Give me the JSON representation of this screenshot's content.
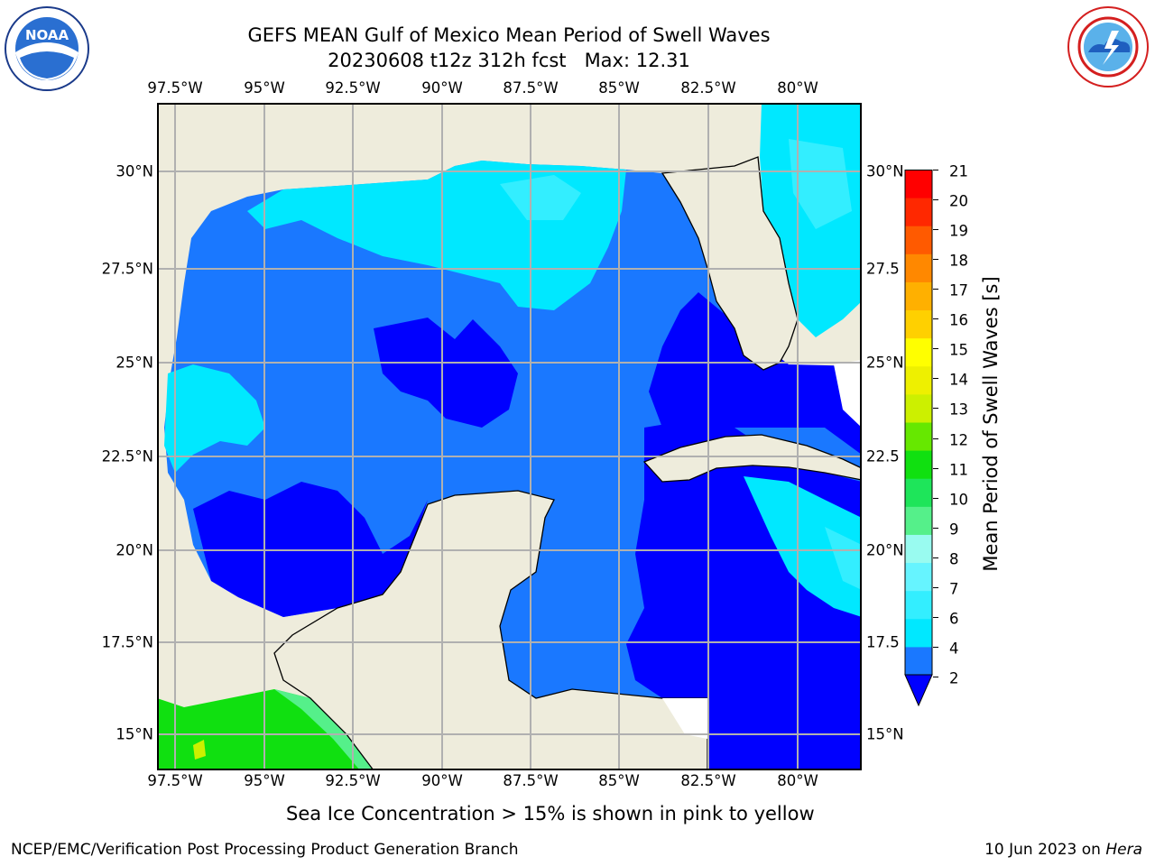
{
  "title": {
    "line1": "GEFS MEAN Gulf of Mexico Mean Period of Swell Waves",
    "line2": "20230608 t12z 312h fcst   Max: 12.31"
  },
  "logos": {
    "left": {
      "icon": "noaa-logo",
      "text": "NOAA",
      "ring_text": "NATIONAL OCEANIC AND ATMOSPHERIC ADMINISTRATION · U.S. DEPARTMENT OF COMMERCE"
    },
    "right": {
      "icon": "national-weather-service-logo",
      "ring_text": "NATIONAL WEATHER SERVICE"
    }
  },
  "map": {
    "region": "Gulf of Mexico",
    "lon_ticks": [
      "97.5°W",
      "95°W",
      "92.5°W",
      "90°W",
      "87.5°W",
      "85°W",
      "82.5°W",
      "80°W"
    ],
    "lat_ticks_left": [
      "30°N",
      "27.5°N",
      "25°N",
      "22.5°N",
      "20°N",
      "17.5°N",
      "15°N"
    ],
    "lat_ticks_right": [
      "30°N",
      "27.5",
      "25°N",
      "22.5",
      "20°N",
      "17.5",
      "15°N"
    ],
    "colors": {
      "land": "#eeecdc",
      "coast": "#000000",
      "grid": "#b0b0b0",
      "missing": "#ffffff"
    }
  },
  "colorbar": {
    "label": "Mean Period of Swell Waves [s]",
    "ticks": [
      "21",
      "20",
      "19",
      "18",
      "17",
      "16",
      "15",
      "14",
      "13",
      "12",
      "11",
      "10",
      "9",
      "8",
      "7",
      "6",
      "4",
      "2"
    ],
    "bands": [
      {
        "from": 2,
        "to": 4,
        "color": "#1a78ff"
      },
      {
        "from": 4,
        "to": 6,
        "color": "#00e8ff"
      },
      {
        "from": 6,
        "to": 7,
        "color": "#33eeff"
      },
      {
        "from": 7,
        "to": 8,
        "color": "#66f4ff"
      },
      {
        "from": 8,
        "to": 9,
        "color": "#99fbf0"
      },
      {
        "from": 9,
        "to": 10,
        "color": "#55f08a"
      },
      {
        "from": 10,
        "to": 11,
        "color": "#1ee55a"
      },
      {
        "from": 11,
        "to": 12,
        "color": "#10e010"
      },
      {
        "from": 12,
        "to": 13,
        "color": "#66e800"
      },
      {
        "from": 13,
        "to": 14,
        "color": "#ccf000"
      },
      {
        "from": 14,
        "to": 15,
        "color": "#eef000"
      },
      {
        "from": 15,
        "to": 16,
        "color": "#ffff00"
      },
      {
        "from": 16,
        "to": 17,
        "color": "#ffd000"
      },
      {
        "from": 17,
        "to": 18,
        "color": "#ffb000"
      },
      {
        "from": 18,
        "to": 19,
        "color": "#ff8800"
      },
      {
        "from": 19,
        "to": 20,
        "color": "#ff5a00"
      },
      {
        "from": 20,
        "to": 21,
        "color": "#ff2800"
      },
      {
        "from": 21,
        "to": 22,
        "color": "#ff0000"
      }
    ],
    "under_color": "#0000ff"
  },
  "subtitle": "Sea Ice Concentration > 15% is shown in pink to yellow",
  "footer": {
    "left": "NCEP/EMC/Verification Post Processing Product Generation Branch",
    "date": "10 Jun 2023 on ",
    "machine": "Hera"
  }
}
